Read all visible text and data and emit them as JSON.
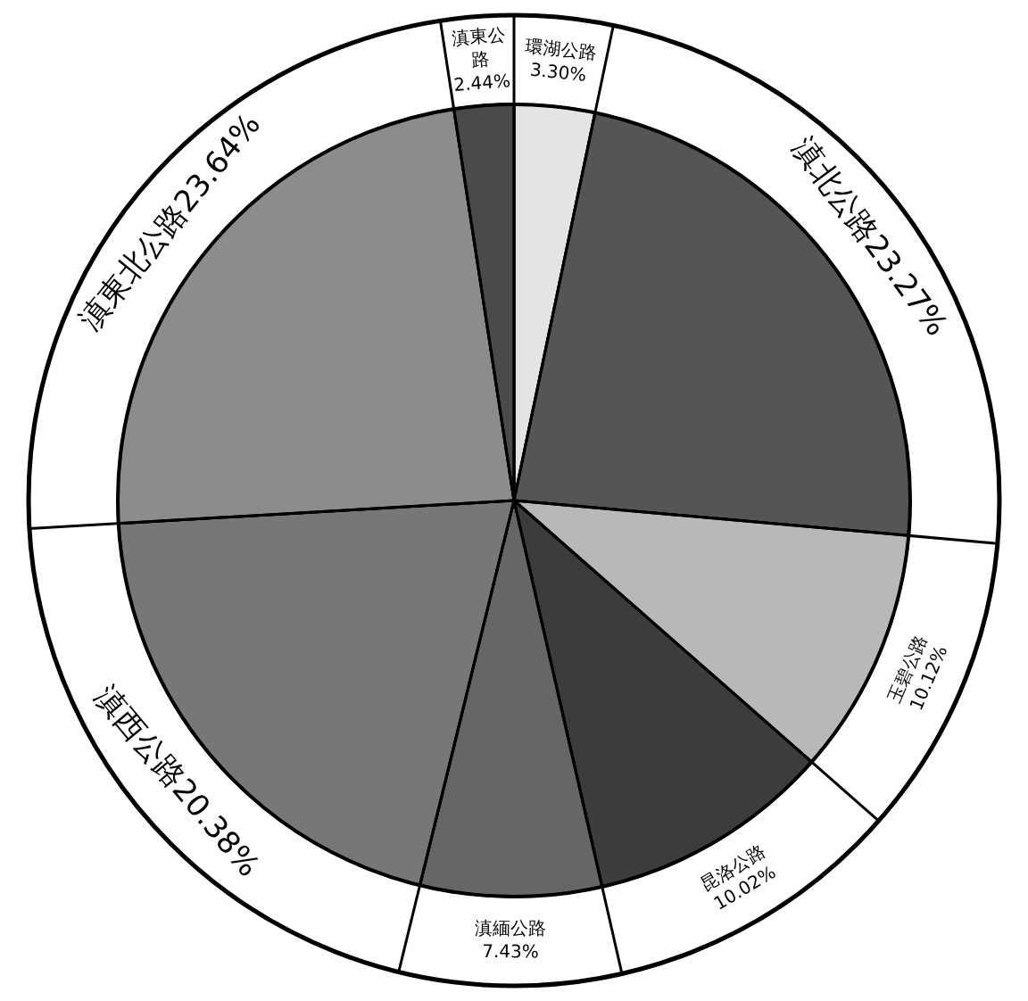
{
  "chart_data": {
    "type": "pie",
    "categories": [
      "環湖公路",
      "滇北公路",
      "玉碧公路",
      "昆洛公路",
      "滇緬公路",
      "滇西公路",
      "滇東北公路",
      "滇東公路"
    ],
    "values": [
      3.3,
      23.27,
      10.12,
      10.02,
      7.43,
      20.38,
      23.64,
      2.44
    ],
    "value_labels": [
      "3.30%",
      "23.27%",
      "10.12%",
      "10.02%",
      "7.43%",
      "20.38%",
      "23.64%",
      "2.44%"
    ],
    "colors": [
      "#e4e4e4",
      "#555555",
      "#b8b8b8",
      "#3c3c3c",
      "#666666",
      "#777777",
      "#8c8c8c",
      "#4a4a4a"
    ],
    "legend": false
  }
}
